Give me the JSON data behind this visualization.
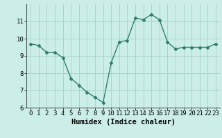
{
  "x": [
    0,
    1,
    2,
    3,
    4,
    5,
    6,
    7,
    8,
    9,
    10,
    11,
    12,
    13,
    14,
    15,
    16,
    17,
    18,
    19,
    20,
    21,
    22,
    23
  ],
  "y": [
    9.7,
    9.6,
    9.2,
    9.2,
    8.9,
    7.7,
    7.3,
    6.9,
    6.6,
    6.3,
    8.6,
    9.8,
    9.9,
    11.2,
    11.1,
    11.4,
    11.1,
    9.8,
    9.4,
    9.5,
    9.5,
    9.5,
    9.5,
    9.7
  ],
  "xlabel": "Humidex (Indice chaleur)",
  "ylim": [
    6,
    12
  ],
  "xlim": [
    -0.5,
    23.5
  ],
  "yticks": [
    6,
    7,
    8,
    9,
    10,
    11
  ],
  "xticks": [
    0,
    1,
    2,
    3,
    4,
    5,
    6,
    7,
    8,
    9,
    10,
    11,
    12,
    13,
    14,
    15,
    16,
    17,
    18,
    19,
    20,
    21,
    22,
    23
  ],
  "line_color": "#2d7d6f",
  "marker_color": "#2d7d6f",
  "bg_color": "#cceee8",
  "grid_color": "#aad4ce",
  "axis_label_fontsize": 7.5,
  "tick_fontsize": 6.5
}
